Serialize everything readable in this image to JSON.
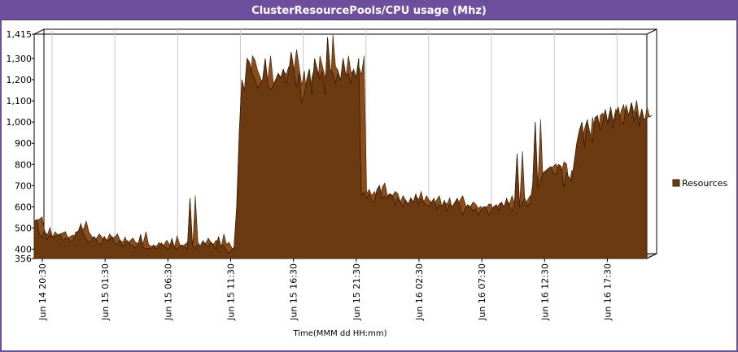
{
  "window": {
    "title": "ClusterResourcePools/CPU usage (Mhz)"
  },
  "chart_data": {
    "type": "area",
    "xlabel": "Time(MMM dd HH:mm)",
    "ylabel": "",
    "ylim": [
      356,
      1415
    ],
    "yticks": [
      "356",
      "400",
      "500",
      "600",
      "700",
      "800",
      "900",
      "1,000",
      "1,100",
      "1,200",
      "1,300",
      "1,415"
    ],
    "xticks": [
      "Jun 14 20:30",
      "Jun 15 01:30",
      "Jun 15 06:30",
      "Jun 15 11:30",
      "Jun 15 16:30",
      "Jun 15 21:30",
      "Jun 16 02:30",
      "Jun 16 07:30",
      "Jun 16 12:30",
      "Jun 16 17:30"
    ],
    "grid": true,
    "legend_position": "right",
    "series": [
      {
        "name": "Resources",
        "color": "#6b3a10",
        "values": [
          530,
          540,
          470,
          455,
          490,
          445,
          470,
          455,
          460,
          465,
          470,
          440,
          450,
          455,
          435,
          440,
          480,
          485,
          520,
          470,
          450,
          430,
          440,
          460,
          445,
          420,
          430,
          460,
          440,
          445,
          460,
          430,
          420,
          445,
          410,
          430,
          440,
          420,
          415,
          405,
          420,
          470,
          410,
          400,
          405,
          400,
          420,
          400,
          410,
          430,
          410,
          405,
          400,
          450,
          410,
          400,
          410,
          420,
          410,
          400,
          640,
          420,
          400,
          420,
          415,
          440,
          420,
          410,
          430,
          420,
          400,
          460,
          410,
          420,
          395,
          380,
          395,
          410,
          600,
          950,
          1200,
          1150,
          1300,
          1280,
          1230,
          1200,
          1160,
          1180,
          1200,
          1300,
          1180,
          1150,
          1170,
          1200,
          1230,
          1210,
          1250,
          1180,
          1230,
          1330,
          1250,
          1160,
          1230,
          1090,
          1130,
          1200,
          1250,
          1130,
          1300,
          1250,
          1200,
          1240,
          1130,
          1400,
          1250,
          1230,
          1180,
          1230,
          1200,
          1300,
          1220,
          1230,
          1180,
          1250,
          1210,
          1300,
          650,
          670,
          640,
          660,
          630,
          620,
          680,
          700,
          640,
          650,
          640,
          660,
          650,
          610,
          640,
          620,
          600,
          630,
          610,
          640,
          620,
          660,
          610,
          640,
          620,
          610,
          600,
          620,
          640,
          590,
          610,
          600,
          630,
          580,
          610,
          600,
          620,
          640,
          600,
          560,
          590,
          610,
          600,
          580,
          590,
          560,
          580,
          600,
          600,
          560,
          580,
          600,
          610,
          580,
          620,
          600,
          640,
          600,
          580,
          610,
          850,
          600,
          620,
          640,
          600,
          620,
          700,
          1000,
          690,
          720,
          760,
          770,
          780,
          790,
          760,
          750,
          800,
          790,
          690,
          760,
          740,
          720,
          810,
          900,
          960,
          1000,
          880,
          1010,
          950,
          900,
          1020,
          1030,
          960,
          1000,
          1060,
          990,
          1050,
          970,
          1040,
          1070,
          1000,
          990,
          1080,
          1030,
          1090,
          1000,
          1050,
          980,
          1060,
          1010,
          1020
        ]
      }
    ]
  }
}
